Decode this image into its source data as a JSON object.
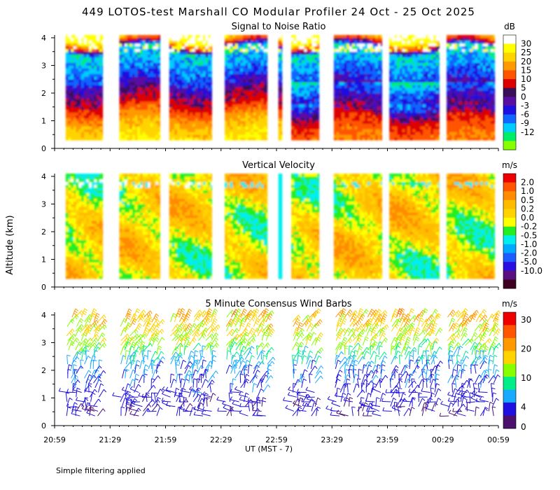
{
  "title": "449 LOTOS-test Marshall CO Modular Profiler 24 Oct - 25 Oct 2025",
  "footer": "Simple filtering applied",
  "shared": {
    "ylabel": "Altitude (km)",
    "xlabel": "UT  (MST - 7)",
    "x_ticks": [
      "20:59",
      "21:29",
      "21:59",
      "22:29",
      "22:59",
      "23:29",
      "23:59",
      "00:29",
      "00:59"
    ],
    "y_ticks": [
      "0",
      "1",
      "2",
      "3",
      "4"
    ],
    "ylim": [
      0,
      4.1
    ]
  },
  "colors": {
    "snr": [
      "#88ff00",
      "#00ee66",
      "#00ccff",
      "#1066ff",
      "#1e10e0",
      "#5a0fa0",
      "#3a0f58",
      "#dd0000",
      "#ff5500",
      "#ff9900",
      "#ffd300",
      "#ffff00",
      "#ffffff"
    ],
    "vel": [
      "#3d0020",
      "#5a0f80",
      "#2a10e0",
      "#1f5cff",
      "#00aaff",
      "#00eeee",
      "#22ee22",
      "#ffff00",
      "#ffd300",
      "#ffbb00",
      "#ff8c00",
      "#ff5500",
      "#ee0000"
    ],
    "wind": [
      "#4b0f6e",
      "#1e10e0",
      "#18aaff",
      "#00ee88",
      "#88ff00",
      "#ffd300",
      "#ff9900",
      "#ff5500",
      "#ee0000"
    ]
  },
  "chart_data": [
    {
      "type": "heatmap",
      "title": "Signal to Noise Ratio",
      "units": "dB",
      "colorbar_labels": [
        "30",
        "25",
        "20",
        "15",
        "10",
        "5",
        "0",
        "-3",
        "-6",
        "-9",
        "-12"
      ],
      "data_segments_ut": [
        [
          "21:05",
          "21:25"
        ],
        [
          "21:34",
          "21:56"
        ],
        [
          "22:01",
          "22:24"
        ],
        [
          "22:31",
          "22:54"
        ],
        [
          "23:00",
          "23:02"
        ],
        [
          "23:07",
          "23:22"
        ],
        [
          "23:30",
          "23:56"
        ],
        [
          "24:00",
          "24:27"
        ],
        [
          "24:31",
          "24:57"
        ]
      ],
      "profile_altitude_km": [
        0.3,
        1.0,
        1.5,
        2.0,
        2.5,
        3.0,
        3.5,
        4.0
      ],
      "profile_snr_db": [
        25,
        18,
        8,
        3,
        -3,
        -6,
        -9,
        30
      ]
    },
    {
      "type": "heatmap",
      "title": "Vertical Velocity",
      "units": "m/s",
      "colorbar_labels": [
        "2.0",
        "1.0",
        "0.5",
        "0.2",
        "0.0",
        "-0.2",
        "-0.5",
        "-1.0",
        "-2.0",
        "-5.0",
        "-10.0"
      ],
      "data_segments_ut": [
        [
          "21:05",
          "21:25"
        ],
        [
          "21:34",
          "21:56"
        ],
        [
          "22:01",
          "22:24"
        ],
        [
          "22:31",
          "22:54"
        ],
        [
          "23:00",
          "23:02"
        ],
        [
          "23:07",
          "23:22"
        ],
        [
          "23:30",
          "23:56"
        ],
        [
          "24:00",
          "24:27"
        ],
        [
          "24:31",
          "24:57"
        ]
      ],
      "dominant_range_m_s": [
        -0.5,
        0.5
      ]
    },
    {
      "type": "wind_barbs",
      "title": "5 Minute Consensus Wind Barbs",
      "units": "m/s",
      "colorbar_labels": [
        "30",
        "20",
        "10",
        "4",
        "0"
      ],
      "profile_altitude_km": [
        0.3,
        1.0,
        2.0,
        2.5,
        3.0,
        3.5,
        4.0
      ],
      "profile_speed_m_s": [
        2,
        3,
        4,
        9,
        14,
        17,
        20
      ],
      "dominant_direction": "westerly"
    }
  ]
}
